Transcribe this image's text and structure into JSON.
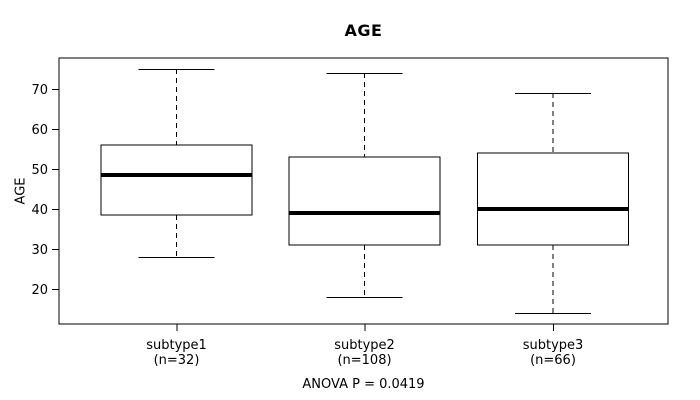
{
  "chart_data": {
    "type": "box",
    "title": "AGE",
    "ylabel": "AGE",
    "xlabel": "",
    "annotation": "ANOVA P = 0.0419",
    "y_ticks": [
      20,
      30,
      40,
      50,
      60,
      70
    ],
    "ylim": [
      11.25,
      77.75
    ],
    "grid": false,
    "legend": "none",
    "colors": {
      "stroke": "#000000",
      "box_fill": "#ffffff",
      "background": "#ffffff"
    },
    "groups": [
      {
        "label": "subtype1",
        "n_label": "(n=32)",
        "n": 32,
        "whisker_low": 28,
        "q1": 38.5,
        "median": 48.5,
        "q3": 56,
        "whisker_high": 75
      },
      {
        "label": "subtype2",
        "n_label": "(n=108)",
        "n": 108,
        "whisker_low": 18,
        "q1": 31,
        "median": 39,
        "q3": 53,
        "whisker_high": 74
      },
      {
        "label": "subtype3",
        "n_label": "(n=66)",
        "n": 66,
        "whisker_low": 14,
        "q1": 31,
        "median": 40,
        "q3": 54,
        "whisker_high": 69
      }
    ]
  }
}
